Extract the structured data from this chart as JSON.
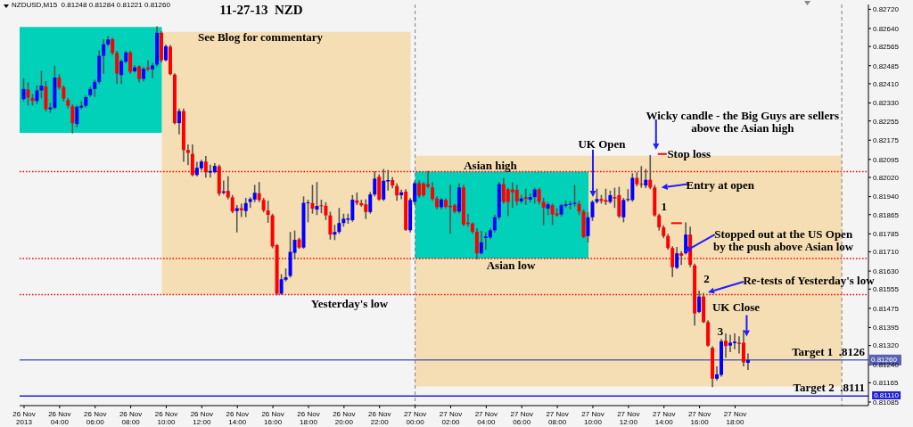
{
  "chart_data": {
    "type": "candlestick",
    "title": "11-27-13  NZD",
    "subtitle": "NZDUSD,M15  0.81248 0.81284 0.81221 0.81260",
    "x": [
      "2013-11-26T02:00",
      "2013-11-26T02:15",
      "2013-11-26T02:30",
      "2013-11-26T02:45",
      "2013-11-26T03:00",
      "2013-11-26T03:15",
      "2013-11-26T03:30",
      "2013-11-26T03:45",
      "2013-11-26T04:00",
      "2013-11-26T04:15",
      "2013-11-26T04:30",
      "2013-11-26T04:45",
      "2013-11-26T05:00",
      "2013-11-26T05:15",
      "2013-11-26T05:30",
      "2013-11-26T05:45",
      "2013-11-26T06:00",
      "2013-11-26T06:15",
      "2013-11-26T06:30",
      "2013-11-26T06:45",
      "2013-11-26T07:00",
      "2013-11-26T07:15",
      "2013-11-26T07:30",
      "2013-11-26T07:45",
      "2013-11-26T08:00",
      "2013-11-26T08:15",
      "2013-11-26T08:30",
      "2013-11-26T08:45",
      "2013-11-26T09:00",
      "2013-11-26T09:15",
      "2013-11-26T09:30",
      "2013-11-26T09:45",
      "2013-11-26T10:00",
      "2013-11-26T10:15",
      "2013-11-26T10:30",
      "2013-11-26T10:45",
      "2013-11-26T11:00",
      "2013-11-26T11:15",
      "2013-11-26T11:30",
      "2013-11-26T11:45",
      "2013-11-26T12:00",
      "2013-11-26T12:15",
      "2013-11-26T12:30",
      "2013-11-26T12:45",
      "2013-11-26T13:00",
      "2013-11-26T13:15",
      "2013-11-26T13:30",
      "2013-11-26T13:45",
      "2013-11-26T14:00",
      "2013-11-26T14:15",
      "2013-11-26T14:30",
      "2013-11-26T14:45",
      "2013-11-26T15:00",
      "2013-11-26T15:15",
      "2013-11-26T15:30",
      "2013-11-26T15:45",
      "2013-11-26T16:00",
      "2013-11-26T16:15",
      "2013-11-26T16:30",
      "2013-11-26T16:45",
      "2013-11-26T17:00",
      "2013-11-26T17:15",
      "2013-11-26T17:30",
      "2013-11-26T17:45",
      "2013-11-26T18:00",
      "2013-11-26T18:15",
      "2013-11-26T18:30",
      "2013-11-26T18:45",
      "2013-11-26T19:00",
      "2013-11-26T19:15",
      "2013-11-26T19:30",
      "2013-11-26T19:45",
      "2013-11-26T20:00",
      "2013-11-26T20:15",
      "2013-11-26T20:30",
      "2013-11-26T20:45",
      "2013-11-26T21:00",
      "2013-11-26T21:15",
      "2013-11-26T21:30",
      "2013-11-26T21:45",
      "2013-11-26T22:00",
      "2013-11-26T22:15",
      "2013-11-26T22:30",
      "2013-11-26T22:45",
      "2013-11-26T23:00",
      "2013-11-26T23:15",
      "2013-11-26T23:30",
      "2013-11-26T23:45",
      "2013-11-27T00:00",
      "2013-11-27T00:15",
      "2013-11-27T00:30",
      "2013-11-27T00:45",
      "2013-11-27T01:00",
      "2013-11-27T01:15",
      "2013-11-27T01:30",
      "2013-11-27T01:45",
      "2013-11-27T02:00",
      "2013-11-27T02:15",
      "2013-11-27T02:30",
      "2013-11-27T02:45",
      "2013-11-27T03:00",
      "2013-11-27T03:15",
      "2013-11-27T03:30",
      "2013-11-27T03:45",
      "2013-11-27T04:00",
      "2013-11-27T04:15",
      "2013-11-27T04:30",
      "2013-11-27T04:45",
      "2013-11-27T05:00",
      "2013-11-27T05:15",
      "2013-11-27T05:30",
      "2013-11-27T05:45",
      "2013-11-27T06:00",
      "2013-11-27T06:15",
      "2013-11-27T06:30",
      "2013-11-27T06:45",
      "2013-11-27T07:00",
      "2013-11-27T07:15",
      "2013-11-27T07:30",
      "2013-11-27T07:45",
      "2013-11-27T08:00",
      "2013-11-27T08:15",
      "2013-11-27T08:30",
      "2013-11-27T08:45",
      "2013-11-27T09:00",
      "2013-11-27T09:15",
      "2013-11-27T09:30",
      "2013-11-27T09:45",
      "2013-11-27T10:00",
      "2013-11-27T10:15",
      "2013-11-27T10:30",
      "2013-11-27T10:45",
      "2013-11-27T11:00",
      "2013-11-27T11:15",
      "2013-11-27T11:30",
      "2013-11-27T11:45",
      "2013-11-27T12:00",
      "2013-11-27T12:15",
      "2013-11-27T12:30",
      "2013-11-27T12:45",
      "2013-11-27T13:00",
      "2013-11-27T13:15",
      "2013-11-27T13:30",
      "2013-11-27T13:45",
      "2013-11-27T14:00",
      "2013-11-27T14:15",
      "2013-11-27T14:30",
      "2013-11-27T14:45",
      "2013-11-27T15:00",
      "2013-11-27T15:15",
      "2013-11-27T15:30",
      "2013-11-27T15:45",
      "2013-11-27T16:00",
      "2013-11-27T16:15",
      "2013-11-27T16:30",
      "2013-11-27T16:45",
      "2013-11-27T17:00",
      "2013-11-27T17:15",
      "2013-11-27T17:30",
      "2013-11-27T17:45",
      "2013-11-27T18:00",
      "2013-11-27T18:15",
      "2013-11-27T18:30",
      "2013-11-27T18:45"
    ],
    "ohlc": [
      [
        0.82346,
        0.8243,
        0.8234,
        0.82388
      ],
      [
        0.82386,
        0.82412,
        0.82322,
        0.82352
      ],
      [
        0.8235,
        0.82364,
        0.82322,
        0.82338
      ],
      [
        0.82338,
        0.824,
        0.82328,
        0.82382
      ],
      [
        0.82382,
        0.8246,
        0.82352,
        0.82402
      ],
      [
        0.82398,
        0.82418,
        0.82298,
        0.82304
      ],
      [
        0.82304,
        0.82328,
        0.82292,
        0.82311
      ],
      [
        0.8231,
        0.82482,
        0.82306,
        0.82436
      ],
      [
        0.82436,
        0.82446,
        0.82388,
        0.82394
      ],
      [
        0.82396,
        0.824,
        0.8234,
        0.82348
      ],
      [
        0.82342,
        0.82348,
        0.8231,
        0.82318
      ],
      [
        0.82316,
        0.82322,
        0.82206,
        0.82246
      ],
      [
        0.82242,
        0.82318,
        0.82232,
        0.82314
      ],
      [
        0.82311,
        0.82334,
        0.82306,
        0.82318
      ],
      [
        0.82318,
        0.82358,
        0.82314,
        0.82354
      ],
      [
        0.82362,
        0.82394,
        0.82358,
        0.82388
      ],
      [
        0.82388,
        0.82424,
        0.82358,
        0.82418
      ],
      [
        0.82418,
        0.82546,
        0.82412,
        0.82526
      ],
      [
        0.82526,
        0.82592,
        0.82454,
        0.82574
      ],
      [
        0.82574,
        0.82606,
        0.82568,
        0.82594
      ],
      [
        0.82596,
        0.82598,
        0.82532,
        0.82538
      ],
      [
        0.82538,
        0.82544,
        0.82412,
        0.82452
      ],
      [
        0.82446,
        0.82508,
        0.82412,
        0.82504
      ],
      [
        0.82502,
        0.82544,
        0.82498,
        0.8254
      ],
      [
        0.8254,
        0.82544,
        0.82454,
        0.8246
      ],
      [
        0.82462,
        0.82484,
        0.8246,
        0.82478
      ],
      [
        0.82482,
        0.82484,
        0.82418,
        0.8243
      ],
      [
        0.8243,
        0.82476,
        0.82422,
        0.82472
      ],
      [
        0.82478,
        0.82504,
        0.82466,
        0.8247
      ],
      [
        0.8247,
        0.82494,
        0.82436,
        0.82486
      ],
      [
        0.8249,
        0.82646,
        0.82484,
        0.82622
      ],
      [
        0.82622,
        0.82626,
        0.82502,
        0.82508
      ],
      [
        0.82508,
        0.8257,
        0.82506,
        0.82566
      ],
      [
        0.82564,
        0.82568,
        0.82448,
        0.8245
      ],
      [
        0.82448,
        0.8245,
        0.82244,
        0.82246
      ],
      [
        0.82246,
        0.82304,
        0.82202,
        0.82296
      ],
      [
        0.82296,
        0.82304,
        0.82088,
        0.82134
      ],
      [
        0.82134,
        0.82154,
        0.82074,
        0.82122
      ],
      [
        0.82118,
        0.82154,
        0.82028,
        0.8203
      ],
      [
        0.8203,
        0.82082,
        0.82028,
        0.8206
      ],
      [
        0.82058,
        0.8209,
        0.82052,
        0.82086
      ],
      [
        0.82086,
        0.82106,
        0.82022,
        0.82042
      ],
      [
        0.8204,
        0.8207,
        0.82022,
        0.82047
      ],
      [
        0.82042,
        0.82076,
        0.8204,
        0.82068
      ],
      [
        0.82066,
        0.8207,
        0.81946,
        0.81952
      ],
      [
        0.81956,
        0.82004,
        0.81952,
        0.81962
      ],
      [
        0.81964,
        0.82022,
        0.81932,
        0.81937
      ],
      [
        0.81937,
        0.81944,
        0.81874,
        0.81878
      ],
      [
        0.8188,
        0.81902,
        0.81794,
        0.81892
      ],
      [
        0.81892,
        0.81908,
        0.81858,
        0.81883
      ],
      [
        0.8188,
        0.81932,
        0.81858,
        0.81913
      ],
      [
        0.81918,
        0.81934,
        0.81896,
        0.8193
      ],
      [
        0.81928,
        0.81986,
        0.8192,
        0.81956
      ],
      [
        0.81954,
        0.81998,
        0.8192,
        0.81926
      ],
      [
        0.81926,
        0.81932,
        0.81878,
        0.81883
      ],
      [
        0.81882,
        0.8192,
        0.81834,
        0.81864
      ],
      [
        0.81862,
        0.81866,
        0.81728,
        0.81733
      ],
      [
        0.81738,
        0.8174,
        0.81532,
        0.81536
      ],
      [
        0.81536,
        0.81614,
        0.81534,
        0.81596
      ],
      [
        0.81594,
        0.81638,
        0.8159,
        0.81604
      ],
      [
        0.8161,
        0.8179,
        0.81606,
        0.8171
      ],
      [
        0.81706,
        0.81796,
        0.81682,
        0.8176
      ],
      [
        0.81762,
        0.81766,
        0.81726,
        0.81728
      ],
      [
        0.81728,
        0.81938,
        0.81726,
        0.81914
      ],
      [
        0.81913,
        0.81924,
        0.81836,
        0.81916
      ],
      [
        0.81913,
        0.81986,
        0.81872,
        0.8189
      ],
      [
        0.81886,
        0.81998,
        0.81866,
        0.81901
      ],
      [
        0.81904,
        0.81924,
        0.81874,
        0.81901
      ],
      [
        0.81902,
        0.81914,
        0.81846,
        0.81862
      ],
      [
        0.81862,
        0.81874,
        0.81764,
        0.81782
      ],
      [
        0.81782,
        0.8182,
        0.81762,
        0.81793
      ],
      [
        0.81793,
        0.8189,
        0.81788,
        0.8183
      ],
      [
        0.8183,
        0.81866,
        0.81818,
        0.81848
      ],
      [
        0.81844,
        0.81866,
        0.8183,
        0.81849
      ],
      [
        0.81842,
        0.81944,
        0.81838,
        0.81927
      ],
      [
        0.81924,
        0.81954,
        0.81908,
        0.81914
      ],
      [
        0.81913,
        0.81924,
        0.81901,
        0.81904
      ],
      [
        0.81908,
        0.81926,
        0.8185,
        0.81876
      ],
      [
        0.81876,
        0.81956,
        0.81872,
        0.81949
      ],
      [
        0.81949,
        0.82042,
        0.81944,
        0.82015
      ],
      [
        0.82023,
        0.8203,
        0.81926,
        0.81928
      ],
      [
        0.81928,
        0.82052,
        0.81925,
        0.82006
      ],
      [
        0.82003,
        0.82048,
        0.81968,
        0.82009
      ],
      [
        0.82009,
        0.82018,
        0.81978,
        0.81986
      ],
      [
        0.81984,
        0.81992,
        0.81926,
        0.81945
      ],
      [
        0.81946,
        0.81966,
        0.81932,
        0.81958
      ],
      [
        0.81961,
        0.81968,
        0.818,
        0.81802
      ],
      [
        0.818,
        0.81932,
        0.81794,
        0.81926
      ],
      [
        0.81918,
        0.82004,
        0.81908,
        0.81996
      ],
      [
        0.81996,
        0.82004,
        0.81938,
        0.81944
      ],
      [
        0.81994,
        0.81998,
        0.81942,
        0.81946
      ],
      [
        0.81992,
        0.82044,
        0.81978,
        0.81982
      ],
      [
        0.81978,
        0.81998,
        0.81926,
        0.8193
      ],
      [
        0.81932,
        0.81938,
        0.8189,
        0.81896
      ],
      [
        0.81896,
        0.81932,
        0.8189,
        0.81928
      ],
      [
        0.81926,
        0.8193,
        0.81894,
        0.81898
      ],
      [
        0.81902,
        0.81986,
        0.81788,
        0.81896
      ],
      [
        0.81904,
        0.81908,
        0.81874,
        0.81878
      ],
      [
        0.81878,
        0.81992,
        0.81874,
        0.81978
      ],
      [
        0.81978,
        0.81986,
        0.8182,
        0.81824
      ],
      [
        0.81832,
        0.81866,
        0.81818,
        0.81826
      ],
      [
        0.81828,
        0.8183,
        0.81788,
        0.81794
      ],
      [
        0.81794,
        0.81806,
        0.81682,
        0.81704
      ],
      [
        0.81704,
        0.81794,
        0.81702,
        0.8175
      ],
      [
        0.81768,
        0.81788,
        0.81722,
        0.81774
      ],
      [
        0.8177,
        0.81806,
        0.81766,
        0.818
      ],
      [
        0.818,
        0.81862,
        0.81794,
        0.81854
      ],
      [
        0.81854,
        0.81998,
        0.81848,
        0.81992
      ],
      [
        0.81992,
        0.82016,
        0.81914,
        0.81918
      ],
      [
        0.8197,
        0.81974,
        0.81862,
        0.81918
      ],
      [
        0.8197,
        0.81996,
        0.81896,
        0.81958
      ],
      [
        0.81968,
        0.81986,
        0.81906,
        0.8192
      ],
      [
        0.8192,
        0.81944,
        0.81914,
        0.81932
      ],
      [
        0.81938,
        0.8197,
        0.81908,
        0.8193
      ],
      [
        0.81928,
        0.8195,
        0.8192,
        0.81938
      ],
      [
        0.81938,
        0.81974,
        0.81914,
        0.8197
      ],
      [
        0.8197,
        0.81974,
        0.8191,
        0.81918
      ],
      [
        0.81918,
        0.81932,
        0.81824,
        0.81894
      ],
      [
        0.8189,
        0.81914,
        0.81866,
        0.81908
      ],
      [
        0.81904,
        0.81908,
        0.81824,
        0.81866
      ],
      [
        0.8187,
        0.8189,
        0.8186,
        0.81862
      ],
      [
        0.81866,
        0.81908,
        0.8186,
        0.81904
      ],
      [
        0.81902,
        0.8192,
        0.81896,
        0.81908
      ],
      [
        0.81906,
        0.81918,
        0.8189,
        0.8191
      ],
      [
        0.8191,
        0.81986,
        0.81902,
        0.81914
      ],
      [
        0.8191,
        0.8192,
        0.81866,
        0.81878
      ],
      [
        0.81878,
        0.81884,
        0.8177,
        0.81772
      ],
      [
        0.81776,
        0.81872,
        0.81752,
        0.81854
      ],
      [
        0.81854,
        0.81922,
        0.81842,
        0.81918
      ],
      [
        0.81918,
        0.8197,
        0.81914,
        0.8193
      ],
      [
        0.8193,
        0.81944,
        0.81914,
        0.81922
      ],
      [
        0.81926,
        0.8197,
        0.81908,
        0.81918
      ],
      [
        0.81918,
        0.81962,
        0.81914,
        0.81946
      ],
      [
        0.81938,
        0.81974,
        0.81896,
        0.81932
      ],
      [
        0.81946,
        0.81978,
        0.81854,
        0.81858
      ],
      [
        0.81854,
        0.81932,
        0.81836,
        0.81926
      ],
      [
        0.81926,
        0.81968,
        0.81922,
        0.8193
      ],
      [
        0.81926,
        0.82034,
        0.81922,
        0.82018
      ],
      [
        0.82018,
        0.82038,
        0.81986,
        0.81992
      ],
      [
        0.81994,
        0.82064,
        0.8198,
        0.8199
      ],
      [
        0.81986,
        0.82052,
        0.81978,
        0.8201
      ],
      [
        0.8201,
        0.8211,
        0.81974,
        0.81978
      ],
      [
        0.81978,
        0.81986,
        0.8186,
        0.81862
      ],
      [
        0.81862,
        0.81866,
        0.81802,
        0.81812
      ],
      [
        0.81812,
        0.81818,
        0.8177,
        0.81776
      ],
      [
        0.81776,
        0.81782,
        0.81722,
        0.81726
      ],
      [
        0.81726,
        0.8173,
        0.81608,
        0.81646
      ],
      [
        0.81644,
        0.81728,
        0.81642,
        0.81704
      ],
      [
        0.81704,
        0.8171,
        0.81658,
        0.81694
      ],
      [
        0.81704,
        0.8183,
        0.81702,
        0.81782
      ],
      [
        0.81782,
        0.81812,
        0.8165,
        0.81656
      ],
      [
        0.81654,
        0.81658,
        0.81406,
        0.81454
      ],
      [
        0.8146,
        0.81546,
        0.81458,
        0.81524
      ],
      [
        0.81524,
        0.81536,
        0.81416,
        0.81418
      ],
      [
        0.81418,
        0.81422,
        0.81318,
        0.8132
      ],
      [
        0.8131,
        0.81314,
        0.8115,
        0.81182
      ],
      [
        0.81182,
        0.8123,
        0.81178,
        0.812
      ],
      [
        0.81198,
        0.81344,
        0.81194,
        0.81338
      ],
      [
        0.8134,
        0.81368,
        0.81272,
        0.81318
      ],
      [
        0.8132,
        0.81362,
        0.81296,
        0.81332
      ],
      [
        0.8133,
        0.81368,
        0.81308,
        0.81336
      ],
      [
        0.81332,
        0.81356,
        0.8129,
        0.81327
      ],
      [
        0.81332,
        0.81382,
        0.81236,
        0.8125
      ],
      [
        0.81248,
        0.81284,
        0.81221,
        0.8126
      ]
    ],
    "xlim": [
      "2013-11-26T01:45",
      "2013-11-28T01:30"
    ],
    "xticks": [
      {
        "value": "2013-11-26T02:00",
        "label": "26 Nov 2013"
      },
      {
        "value": "2013-11-26T04:00",
        "label": "26 Nov 04:00"
      },
      {
        "value": "2013-11-26T06:00",
        "label": "26 Nov 06:00"
      },
      {
        "value": "2013-11-26T08:00",
        "label": "26 Nov 08:00"
      },
      {
        "value": "2013-11-26T10:00",
        "label": "26 Nov 10:00"
      },
      {
        "value": "2013-11-26T12:00",
        "label": "26 Nov 12:00"
      },
      {
        "value": "2013-11-26T14:00",
        "label": "26 Nov 14:00"
      },
      {
        "value": "2013-11-26T16:00",
        "label": "26 Nov 16:00"
      },
      {
        "value": "2013-11-26T18:00",
        "label": "26 Nov 18:00"
      },
      {
        "value": "2013-11-26T20:00",
        "label": "26 Nov 20:00"
      },
      {
        "value": "2013-11-26T22:00",
        "label": "26 Nov 22:00"
      },
      {
        "value": "2013-11-27T00:00",
        "label": "27 Nov 00:00"
      },
      {
        "value": "2013-11-27T02:00",
        "label": "27 Nov 02:00"
      },
      {
        "value": "2013-11-27T04:00",
        "label": "27 Nov 04:00"
      },
      {
        "value": "2013-11-27T06:00",
        "label": "27 Nov 06:00"
      },
      {
        "value": "2013-11-27T08:00",
        "label": "27 Nov 08:00"
      },
      {
        "value": "2013-11-27T10:00",
        "label": "27 Nov 10:00"
      },
      {
        "value": "2013-11-27T12:00",
        "label": "27 Nov 12:00"
      },
      {
        "value": "2013-11-27T14:00",
        "label": "27 Nov 14:00"
      },
      {
        "value": "2013-11-27T16:00",
        "label": "27 Nov 16:00"
      },
      {
        "value": "2013-11-27T18:00",
        "label": "27 Nov 18:00"
      }
    ],
    "ylim": [
      0.8107,
      0.8274
    ],
    "yticks": [
      {
        "value": 0.8272,
        "label": "0.82720"
      },
      {
        "value": 0.8264,
        "label": "0.82640"
      },
      0.82565,
      0.82485,
      {
        "value": 0.8241,
        "label": "0.82410"
      },
      {
        "value": 0.8233,
        "label": "0.82330"
      },
      0.82255,
      0.82175,
      0.82095,
      {
        "value": 0.8202,
        "label": "0.82020"
      },
      {
        "value": 0.8194,
        "label": "0.81940"
      },
      0.81865,
      0.81785,
      {
        "value": 0.8171,
        "label": "0.81710"
      },
      {
        "value": 0.8163,
        "label": "0.81630"
      },
      0.81555,
      0.81475,
      0.81395,
      {
        "value": 0.8132,
        "label": "0.81320"
      },
      {
        "value": 0.8124,
        "label": "0.81240"
      },
      0.81165,
      0.81085
    ],
    "bands": [
      {
        "axis": "x",
        "from": "2013-11-26T09:45",
        "to": "2013-11-26T23:45",
        "color": "#f5deb3"
      },
      {
        "axis": "x",
        "from": "2013-11-27T00:00",
        "to": "2013-11-28T00:00",
        "color": "#f5deb3"
      },
      {
        "axis": "x",
        "from": "2013-11-26T01:45",
        "to": "2013-11-26T09:45",
        "color": "#00d1b8"
      },
      {
        "axis": "x",
        "from": "2013-11-27T00:00",
        "to": "2013-11-27T09:45",
        "color": "#00d1b8"
      }
    ],
    "ref_lines": [
      {
        "axis": "x",
        "value": "2013-11-27T00:00",
        "color": "#808080",
        "line_style": "dashed"
      },
      {
        "axis": "x",
        "value": "2013-11-28T00:00",
        "color": "#808080",
        "line_style": "dashed"
      },
      {
        "axis": "y",
        "value": 0.82044,
        "color": "#ff0000",
        "line_style": "dotted"
      },
      {
        "axis": "y",
        "value": 0.81682,
        "color": "#ff0000",
        "line_style": "dotted"
      },
      {
        "axis": "y",
        "value": 0.81532,
        "color": "#ff0000",
        "line_style": "dotted"
      },
      {
        "axis": "y",
        "value": 0.8126,
        "label": "Target 1  .8126",
        "color": "#5a64b4",
        "line_style": "solid"
      },
      {
        "axis": "y",
        "value": 0.8111,
        "label": "Target 2  .8111",
        "color": "#2020d0",
        "line_style": "solid"
      }
    ],
    "annotations": [
      "See Blog for commentary",
      "Asian high",
      "Asian low",
      "Yesterday's low",
      "UK Open",
      {
        "text": "Wicky candle - the Big Guys are sellers\nabove the Asian high",
        "x": "2013-11-27T13:15",
        "y": 0.8212
      },
      {
        "text": "Stop loss",
        "x": "2013-11-27T13:15",
        "y": 0.8211
      },
      {
        "text": "Entry at open",
        "x": "2013-11-27T13:30",
        "y": 0.81978
      },
      {
        "text": "1",
        "x": "2013-11-27T13:30",
        "y": 0.819
      },
      {
        "text": "Stopped out at the US Open\nby the push above Asian low",
        "x": "2013-11-27T15:00",
        "y": 0.817
      },
      {
        "text": "2",
        "x": "2013-11-27T16:00",
        "y": 0.816
      },
      "Re-tests of Yesterday's low",
      "3",
      {
        "text": "UK Close",
        "x": "2013-11-27T18:30",
        "y": 0.8135
      },
      {
        "text": "0.81260",
        "y": 0.8126
      },
      "0.81110"
    ]
  }
}
